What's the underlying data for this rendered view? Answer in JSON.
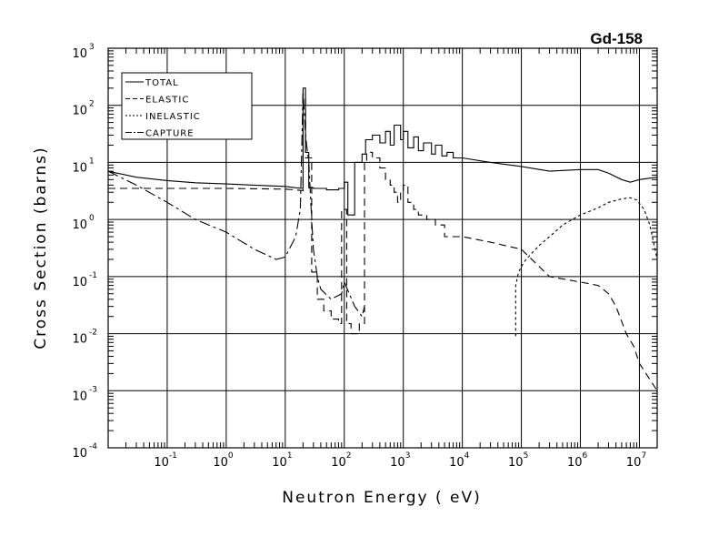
{
  "chart_data": {
    "type": "line",
    "title": "Gd-158",
    "xlabel": "Neutron Energy ( eV)",
    "ylabel": "Cross Section (barns)",
    "xscale": "log",
    "yscale": "log",
    "xlim": [
      0.01,
      20000000
    ],
    "ylim": [
      0.0001,
      1000
    ],
    "grid": true,
    "legend_position": "top-left",
    "x_ticks": [
      {
        "base": "10",
        "exp": "-1",
        "value": 0.1
      },
      {
        "base": "10",
        "exp": "0",
        "value": 1
      },
      {
        "base": "10",
        "exp": "1",
        "value": 10
      },
      {
        "base": "10",
        "exp": "2",
        "value": 100
      },
      {
        "base": "10",
        "exp": "3",
        "value": 1000
      },
      {
        "base": "10",
        "exp": "4",
        "value": 10000
      },
      {
        "base": "10",
        "exp": "5",
        "value": 100000
      },
      {
        "base": "10",
        "exp": "6",
        "value": 1000000
      },
      {
        "base": "10",
        "exp": "7",
        "value": 10000000
      }
    ],
    "y_ticks": [
      {
        "base": "10",
        "exp": "-4",
        "value": 0.0001
      },
      {
        "base": "10",
        "exp": "-3",
        "value": 0.001
      },
      {
        "base": "10",
        "exp": "-2",
        "value": 0.01
      },
      {
        "base": "10",
        "exp": "-1",
        "value": 0.1
      },
      {
        "base": "10",
        "exp": "0",
        "value": 1
      },
      {
        "base": "10",
        "exp": "1",
        "value": 10
      },
      {
        "base": "10",
        "exp": "2",
        "value": 100
      },
      {
        "base": "10",
        "exp": "3",
        "value": 1000
      }
    ],
    "series": [
      {
        "name": "TOTAL",
        "dash": "",
        "x": [
          0.01,
          0.03,
          0.1,
          0.3,
          1,
          3,
          10,
          15,
          20,
          20,
          22,
          22,
          25,
          25,
          30,
          30,
          50,
          50,
          80,
          80,
          100,
          100,
          115,
          115,
          150,
          150,
          200,
          200,
          230,
          230,
          300,
          300,
          400,
          400,
          500,
          500,
          600,
          600,
          700,
          700,
          900,
          900,
          1000,
          1000,
          1200,
          1200,
          1500,
          1500,
          1800,
          1800,
          2200,
          2200,
          3000,
          3000,
          3500,
          3500,
          4500,
          4500,
          5500,
          5500,
          7000,
          7000,
          10000,
          30000,
          100000,
          300000,
          1000000,
          2000000,
          3000000,
          5000000,
          7000000,
          10000000,
          20000000
        ],
        "y": [
          7,
          5.5,
          4.8,
          4.4,
          4.2,
          4.0,
          3.8,
          3.6,
          3.5,
          200,
          200,
          15,
          15,
          3.6,
          3.6,
          3.5,
          3.5,
          3.3,
          3.3,
          3.5,
          3.5,
          4.5,
          4.5,
          1.2,
          1.2,
          10,
          10,
          14,
          14,
          25,
          25,
          30,
          30,
          22,
          22,
          35,
          35,
          20,
          20,
          45,
          45,
          25,
          25,
          35,
          35,
          18,
          18,
          28,
          28,
          16,
          16,
          22,
          22,
          14,
          14,
          20,
          20,
          13,
          13,
          15,
          15,
          12,
          12,
          10,
          8.5,
          7,
          7.5,
          7.5,
          6.5,
          5,
          4.5,
          5,
          5.5
        ]
      },
      {
        "name": "ELASTIC",
        "dash": "8,5",
        "x": [
          0.01,
          0.1,
          1,
          10,
          15,
          20,
          20,
          22,
          22,
          28,
          28,
          35,
          35,
          45,
          45,
          60,
          60,
          80,
          80,
          90,
          90,
          110,
          110,
          130,
          130,
          180,
          180,
          220,
          220,
          240,
          240,
          300,
          300,
          400,
          400,
          500,
          500,
          600,
          600,
          700,
          700,
          800,
          800,
          900,
          900,
          1000,
          1000,
          1200,
          1200,
          1500,
          1500,
          1800,
          1800,
          2500,
          2500,
          3500,
          3500,
          5000,
          5000,
          10000,
          30000,
          100000,
          300000,
          1000000,
          2000000,
          3000000,
          4000000,
          6000000,
          8000000,
          10000000,
          20000000
        ],
        "y": [
          3.5,
          3.5,
          3.5,
          3.4,
          3.3,
          3.2,
          150,
          150,
          12,
          12,
          0.12,
          0.12,
          0.04,
          0.04,
          0.025,
          0.025,
          0.018,
          0.018,
          0.015,
          0.015,
          1.5,
          1.5,
          0.015,
          0.015,
          0.01,
          0.01,
          0.015,
          0.015,
          10,
          10,
          15,
          15,
          12,
          12,
          8,
          8,
          5,
          5,
          4,
          4,
          3,
          3,
          2,
          2,
          3,
          3,
          4,
          4,
          2,
          2,
          1.5,
          1.5,
          1.2,
          1.2,
          1.0,
          1.0,
          0.8,
          0.8,
          0.5,
          0.5,
          0.4,
          0.3,
          0.1,
          0.08,
          0.07,
          0.05,
          0.03,
          0.01,
          0.006,
          0.003,
          0.001
        ]
      },
      {
        "name": "INELASTIC",
        "dash": "3,3",
        "x": [
          80000,
          80000,
          90000,
          100000,
          120000,
          200000,
          300000,
          500000,
          1000000,
          2000000,
          3000000,
          5000000,
          7000000,
          9000000,
          12000000,
          15000000,
          20000000
        ],
        "y": [
          0.009,
          0.07,
          0.12,
          0.15,
          0.2,
          0.35,
          0.5,
          0.8,
          1.2,
          1.6,
          2.0,
          2.3,
          2.4,
          2.2,
          1.5,
          0.8,
          0.2
        ]
      },
      {
        "name": "CAPTURE",
        "dash": "12,4,3,4",
        "x": [
          0.01,
          0.03,
          0.1,
          0.3,
          1,
          3,
          7,
          10,
          15,
          18,
          20,
          22,
          25,
          28,
          30,
          35,
          40,
          60,
          90,
          100,
          150,
          200,
          220
        ],
        "y": [
          7,
          4,
          2,
          1,
          0.6,
          0.3,
          0.2,
          0.22,
          0.5,
          1.5,
          180,
          30,
          10,
          1.0,
          0.3,
          0.1,
          0.06,
          0.04,
          0.05,
          0.08,
          0.03,
          0.02,
          0.03
        ]
      }
    ]
  }
}
